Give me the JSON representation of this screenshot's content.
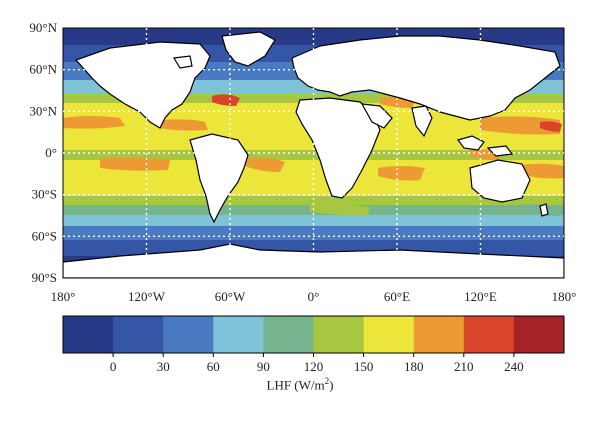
{
  "map": {
    "lat_labels": [
      "90°N",
      "60°N",
      "30°N",
      "0°",
      "30°S",
      "60°S",
      "90°S"
    ],
    "lon_labels": [
      "180°",
      "120°W",
      "60°W",
      "0°",
      "60°E",
      "120°E",
      "180°"
    ],
    "grid_lines": true,
    "land_color": "#ffffff",
    "coast_color": "#000000",
    "grid_color": "#ffffff"
  },
  "colorbar": {
    "title_prefix": "LHF (W/m",
    "title_sup": "2",
    "title_suffix": ")",
    "tick_labels": [
      "0",
      "30",
      "60",
      "90",
      "120",
      "150",
      "180",
      "210",
      "240"
    ],
    "colors": [
      "#283a87",
      "#3556a6",
      "#4a7ac2",
      "#7ec3da",
      "#76b48f",
      "#a7c642",
      "#ece53a",
      "#ee9a34",
      "#d8452b",
      "#a52327"
    ]
  }
}
